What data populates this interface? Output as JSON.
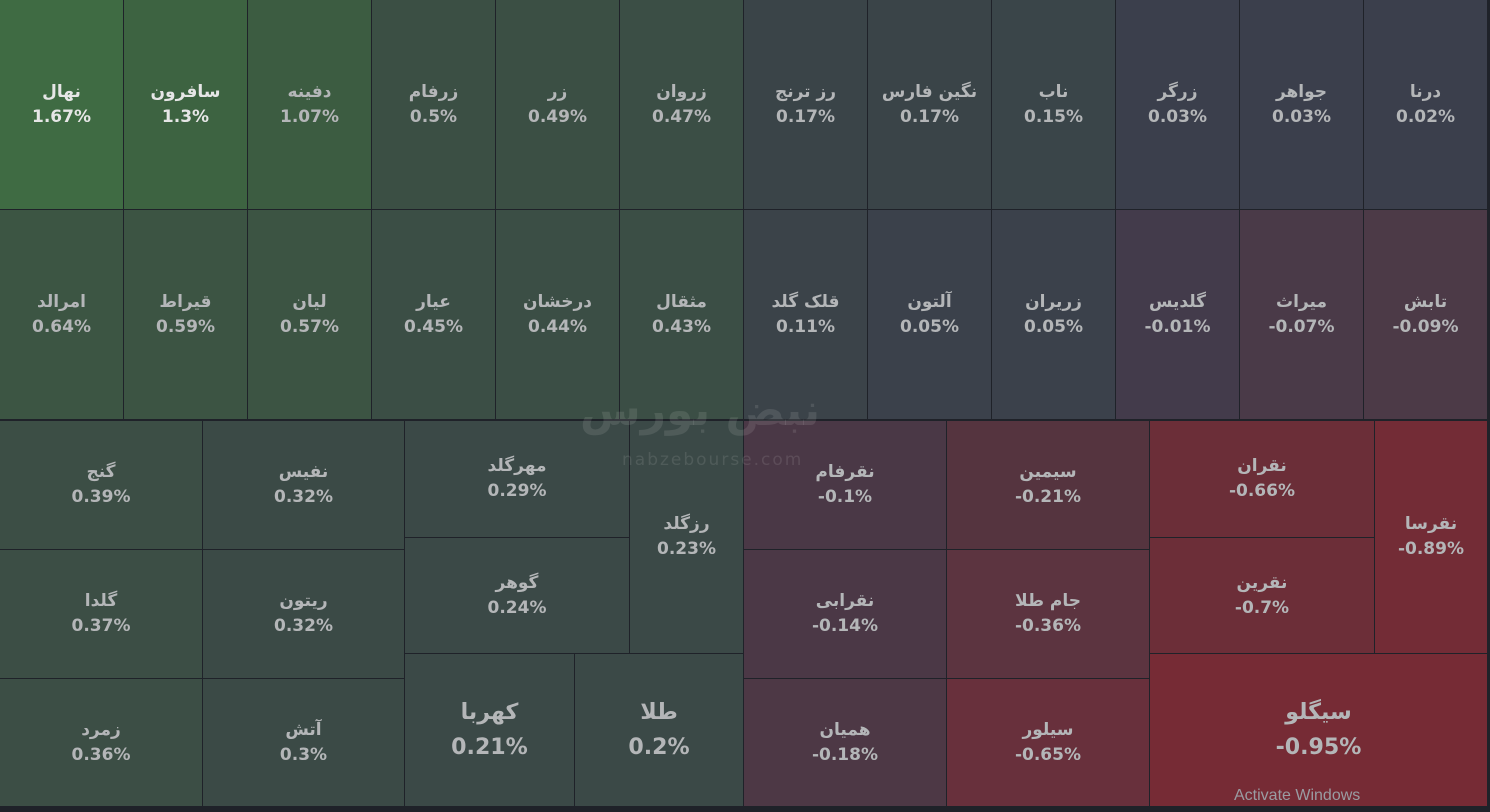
{
  "tiles": [
    {
      "name": "نهال",
      "change": "1.67%"
    },
    {
      "name": "سافرون",
      "change": "1.3%"
    },
    {
      "name": "دفینه",
      "change": "1.07%"
    },
    {
      "name": "زرفام",
      "change": "0.5%"
    },
    {
      "name": "زر",
      "change": "0.49%"
    },
    {
      "name": "زروان",
      "change": "0.47%"
    },
    {
      "name": "رز ترنج",
      "change": "0.17%"
    },
    {
      "name": "نگین فارس",
      "change": "0.17%"
    },
    {
      "name": "ناب",
      "change": "0.15%"
    },
    {
      "name": "زرگر",
      "change": "0.03%"
    },
    {
      "name": "جواهر",
      "change": "0.03%"
    },
    {
      "name": "درنا",
      "change": "0.02%"
    },
    {
      "name": "امرالد",
      "change": "0.64%"
    },
    {
      "name": "قیراط",
      "change": "0.59%"
    },
    {
      "name": "لیان",
      "change": "0.57%"
    },
    {
      "name": "عیار",
      "change": "0.45%"
    },
    {
      "name": "درخشان",
      "change": "0.44%"
    },
    {
      "name": "مثقال",
      "change": "0.43%"
    },
    {
      "name": "قلک گلد",
      "change": "0.11%"
    },
    {
      "name": "آلتون",
      "change": "0.05%"
    },
    {
      "name": "زریران",
      "change": "0.05%"
    },
    {
      "name": "گلدیس",
      "change": "-0.01%"
    },
    {
      "name": "میراث",
      "change": "-0.07%"
    },
    {
      "name": "تابش",
      "change": "-0.09%"
    },
    {
      "name": "گنج",
      "change": "0.39%"
    },
    {
      "name": "گلدا",
      "change": "0.37%"
    },
    {
      "name": "زمرد",
      "change": "0.36%"
    },
    {
      "name": "نفیس",
      "change": "0.32%"
    },
    {
      "name": "ریتون",
      "change": "0.32%"
    },
    {
      "name": "آتش",
      "change": "0.3%"
    },
    {
      "name": "مهرگلد",
      "change": "0.29%"
    },
    {
      "name": "گوهر",
      "change": "0.24%"
    },
    {
      "name": "رزگلد",
      "change": "0.23%"
    },
    {
      "name": "کهربا",
      "change": "0.21%"
    },
    {
      "name": "طلا",
      "change": "0.2%"
    },
    {
      "name": "نقرفام",
      "change": "-0.1%"
    },
    {
      "name": "نقرابی",
      "change": "-0.14%"
    },
    {
      "name": "همیان",
      "change": "-0.18%"
    },
    {
      "name": "سیمین",
      "change": "-0.21%"
    },
    {
      "name": "جام طلا",
      "change": "-0.36%"
    },
    {
      "name": "سیلور",
      "change": "-0.65%"
    },
    {
      "name": "نقران",
      "change": "-0.66%"
    },
    {
      "name": "نقرین",
      "change": "-0.7%"
    },
    {
      "name": "نقرسا",
      "change": "-0.89%"
    },
    {
      "name": "سیگلو",
      "change": "-0.95%"
    }
  ],
  "watermark_logo": "نبض بورس",
  "watermark_url": "nabzebourse.com",
  "os_notice": "Activate Windows"
}
